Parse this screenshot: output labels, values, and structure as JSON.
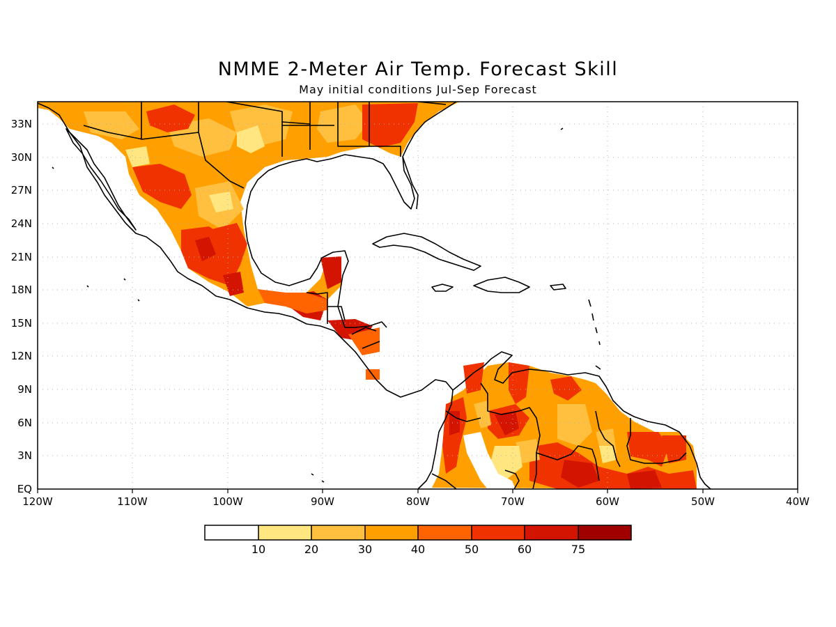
{
  "title": "NMME 2-Meter Air Temp. Forecast Skill",
  "subtitle": "May initial conditions  Jul-Sep Forecast",
  "axes": {
    "lon_labels": [
      "120W",
      "110W",
      "100W",
      "90W",
      "80W",
      "70W",
      "60W",
      "50W",
      "40W"
    ],
    "lat_labels": [
      "EQ",
      "3N",
      "6N",
      "9N",
      "12N",
      "15N",
      "18N",
      "21N",
      "24N",
      "27N",
      "30N",
      "33N"
    ],
    "lon_range": [
      -120,
      -40
    ],
    "lat_range": [
      0,
      35
    ],
    "grid": "dotted"
  },
  "colorbar": {
    "labels": [
      "10",
      "20",
      "30",
      "40",
      "50",
      "60",
      "75"
    ],
    "colors": [
      "#ffffff",
      "#ffe680",
      "#ffc040",
      "#ffa000",
      "#ff6400",
      "#f03200",
      "#d21400",
      "#a00000"
    ]
  },
  "chart_data": {
    "type": "heatmap",
    "title": "NMME 2-Meter Air Temp. Forecast Skill",
    "subtitle": "May initial conditions  Jul-Sep Forecast",
    "xlim": [
      -120,
      -40
    ],
    "ylim": [
      0,
      35
    ],
    "levels": [
      10,
      20,
      30,
      40,
      50,
      60,
      75
    ],
    "regions_skill": [
      {
        "lon": -110,
        "lat": 33,
        "level": 40
      },
      {
        "lon": -105,
        "lat": 28,
        "level": 50
      },
      {
        "lon": -100,
        "lat": 26,
        "level": 30
      },
      {
        "lon": -103,
        "lat": 22,
        "level": 60
      },
      {
        "lon": -99,
        "lat": 19,
        "level": 60
      },
      {
        "lon": -91,
        "lat": 16,
        "level": 75
      },
      {
        "lon": -88,
        "lat": 19,
        "level": 60
      },
      {
        "lon": -87,
        "lat": 14,
        "level": 50
      },
      {
        "lon": -85,
        "lat": 33,
        "level": 40
      },
      {
        "lon": -83,
        "lat": 32,
        "level": 60
      },
      {
        "lon": -75,
        "lat": 6,
        "level": 60
      },
      {
        "lon": -72,
        "lat": 3,
        "level": 10
      },
      {
        "lon": -70,
        "lat": 6,
        "level": 60
      },
      {
        "lon": -65,
        "lat": 7,
        "level": 40
      },
      {
        "lon": -62,
        "lat": 2,
        "level": 50
      },
      {
        "lon": -55,
        "lat": 4,
        "level": 60
      }
    ]
  }
}
